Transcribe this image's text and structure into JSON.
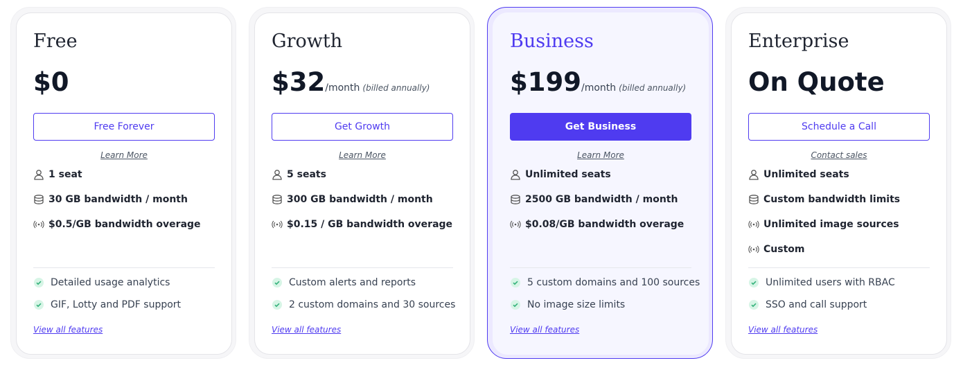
{
  "plans": [
    {
      "name": "Free",
      "price": "$0",
      "button": "Free Forever",
      "link": "Learn More",
      "features": [
        "1 seat",
        "30 GB bandwidth / month",
        "$0.5/GB bandwidth overage"
      ],
      "extras": [
        "Detailed usage analytics",
        "GIF, Lotty and PDF support"
      ],
      "view_all": "View all features"
    },
    {
      "name": "Growth",
      "price": "$32",
      "period": "/month",
      "billing": "(billed annually)",
      "button": "Get Growth",
      "link": "Learn More",
      "features": [
        "5 seats",
        "300 GB bandwidth / month",
        "$0.15 / GB bandwidth overage"
      ],
      "extras": [
        "Custom alerts and reports",
        "2 custom domains and 30 sources"
      ],
      "view_all": "View all features"
    },
    {
      "name": "Business",
      "price": "$199",
      "period": "/month",
      "billing": "(billed annually)",
      "button": "Get Business",
      "link": "Learn More",
      "features": [
        "Unlimited seats",
        "2500 GB bandwidth / month",
        "$0.08/GB bandwidth overage"
      ],
      "extras": [
        "5 custom domains and 100 sources",
        "No image size limits"
      ],
      "view_all": "View all features",
      "highlighted": true
    },
    {
      "name": "Enterprise",
      "price": "On Quote",
      "button": "Schedule a Call",
      "link": "Contact sales",
      "features": [
        "Unlimited seats",
        "Custom bandwidth limits",
        "Unlimited image sources",
        "Custom"
      ],
      "extras": [
        "Unlimited users with RBAC",
        "SSO and call support"
      ],
      "view_all": "View all features"
    }
  ]
}
